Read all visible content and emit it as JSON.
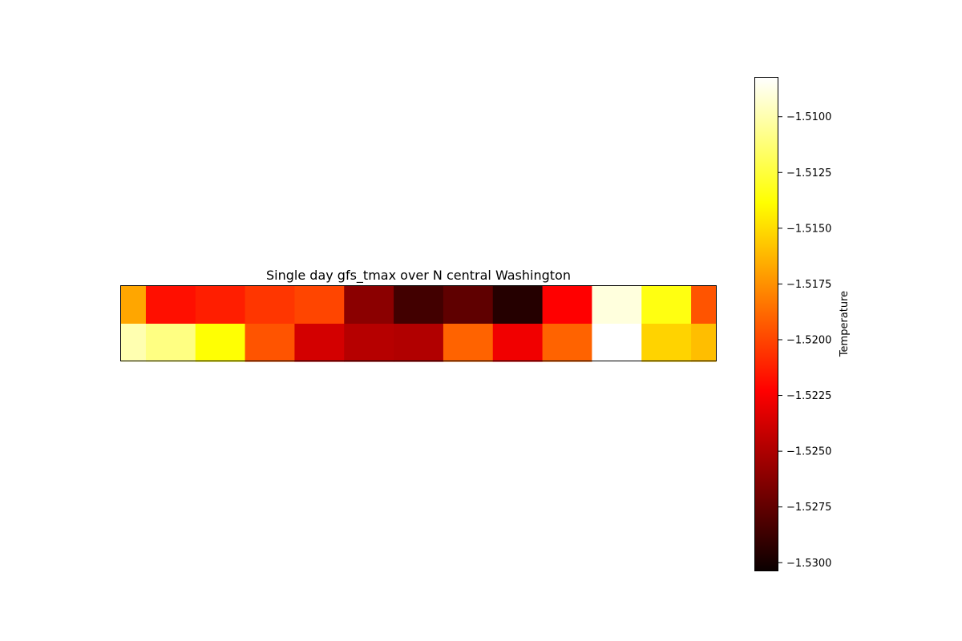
{
  "chart_data": {
    "type": "heatmap",
    "title": "Single day gfs_tmax over N central Washington",
    "colormap": "hot",
    "axes_visible": false,
    "grid": false,
    "column_edges": [
      0,
      1,
      3,
      5,
      7,
      9,
      11,
      13,
      15,
      17,
      19,
      21,
      23,
      24
    ],
    "rows": [
      [
        -1.5168,
        -1.5218,
        -1.5213,
        -1.5205,
        -1.52,
        -1.5265,
        -1.529,
        -1.528,
        -1.53,
        -1.5223,
        -1.509,
        -1.5135,
        -1.5195
      ],
      [
        -1.51,
        -1.511,
        -1.5138,
        -1.5195,
        -1.524,
        -1.525,
        -1.5252,
        -1.519,
        -1.523,
        -1.519,
        -1.5082,
        -1.5153,
        -1.516
      ]
    ],
    "colorbar": {
      "label": "Temperature",
      "range": [
        -1.53035,
        -1.50825
      ],
      "ticks": [
        -1.51,
        -1.5125,
        -1.515,
        -1.5175,
        -1.52,
        -1.5225,
        -1.525,
        -1.5275,
        -1.53
      ],
      "tick_labels": [
        "−1.5100",
        "−1.5125",
        "−1.5150",
        "−1.5175",
        "−1.5200",
        "−1.5225",
        "−1.5250",
        "−1.5275",
        "−1.5300"
      ]
    }
  }
}
